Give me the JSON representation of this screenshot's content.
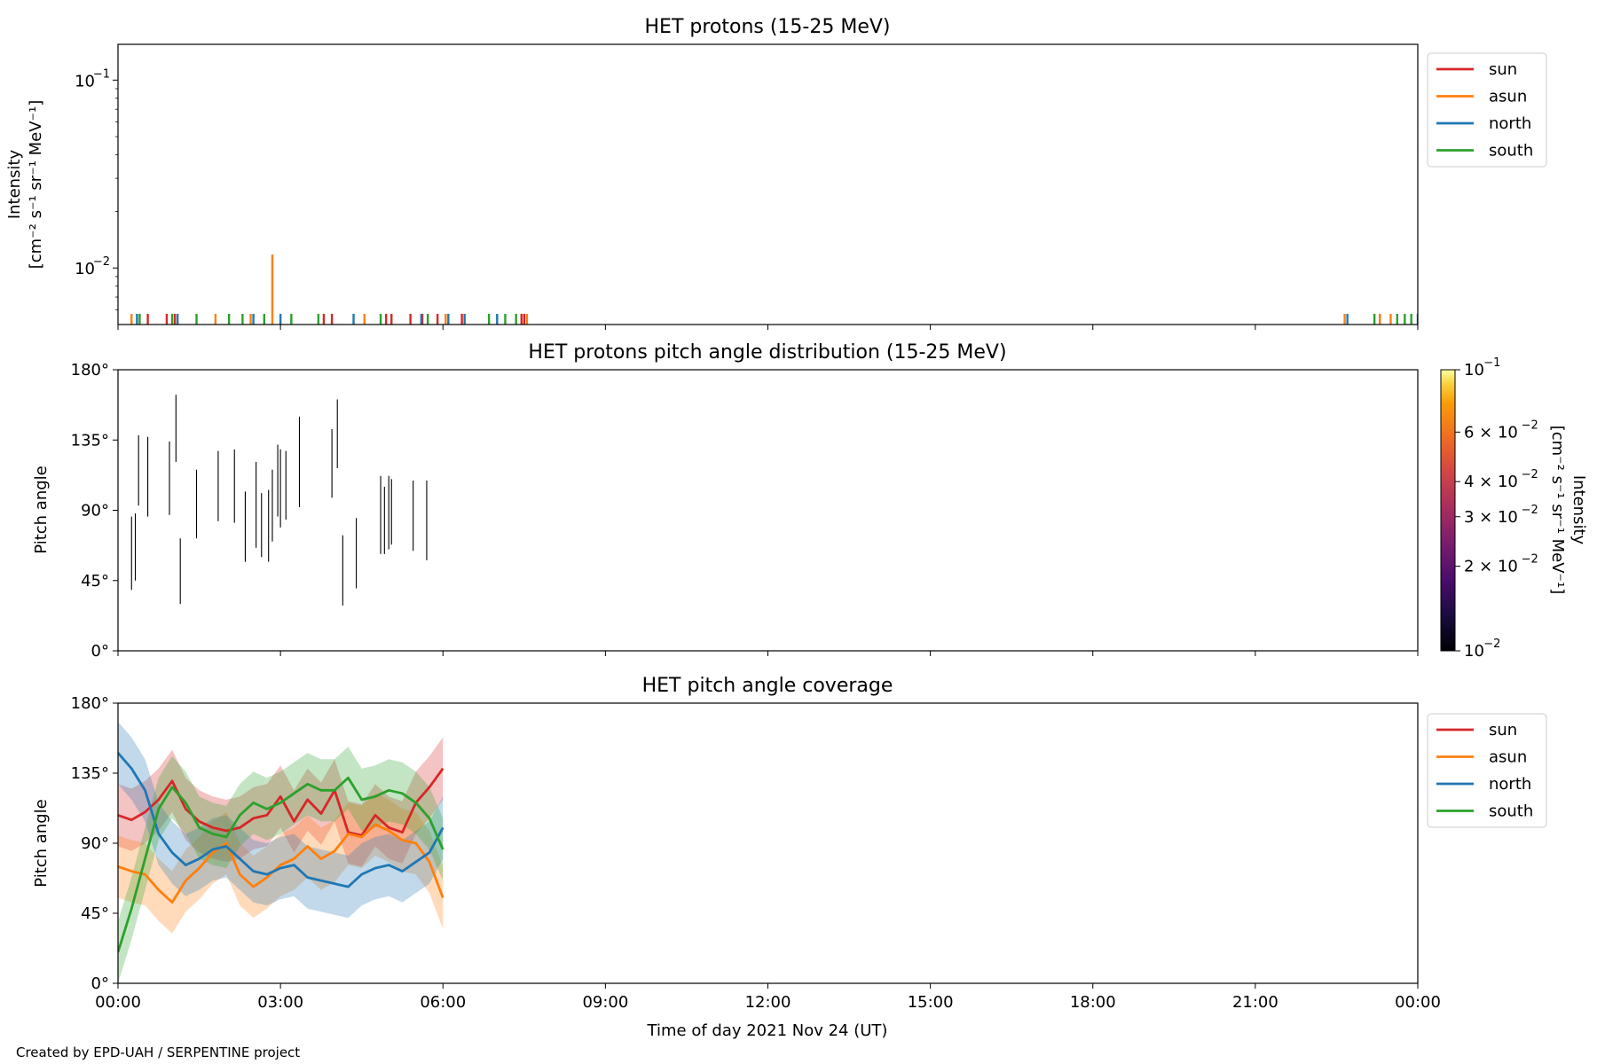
{
  "colors": {
    "sun": "#d62728",
    "asun": "#ff7f0e",
    "north": "#1f77b4",
    "south": "#2ca02c"
  },
  "credit": "Created by EPD-UAH / SERPENTINE project",
  "xaxis": {
    "label": "Time of day 2021 Nov 24 (UT)",
    "range_hours": [
      0,
      24
    ],
    "tick_hours": [
      0,
      3,
      6,
      9,
      12,
      15,
      18,
      21,
      24
    ],
    "tick_labels": [
      "00:00",
      "03:00",
      "06:00",
      "09:00",
      "12:00",
      "15:00",
      "18:00",
      "21:00",
      "00:00"
    ]
  },
  "chart_data": [
    {
      "type": "line",
      "title": "HET protons (15-25 MeV)",
      "ylabel_line1": "Intensity",
      "ylabel_line2": "[cm⁻² s⁻¹ sr⁻¹ MeV⁻¹]",
      "yscale": "log",
      "ylim": [
        0.005,
        0.155
      ],
      "yticks": [
        {
          "value": 0.01,
          "base": "10",
          "exp": "−2"
        },
        {
          "value": 0.1,
          "base": "10",
          "exp": "−1"
        }
      ],
      "legend": {
        "position": "upper-right-outside",
        "entries": [
          "sun",
          "asun",
          "north",
          "south"
        ]
      },
      "series": [
        {
          "name": "sun",
          "color": "#d62728",
          "baseline": 0.0052,
          "spikes": [
            [
              0.55,
              0.0057
            ],
            [
              0.9,
              0.0057
            ],
            [
              1.05,
              0.0057
            ],
            [
              3.8,
              0.0057
            ],
            [
              3.95,
              0.0057
            ],
            [
              4.95,
              0.0057
            ],
            [
              5.05,
              0.0057
            ],
            [
              5.4,
              0.0057
            ],
            [
              5.62,
              0.0057
            ],
            [
              5.9,
              0.0057
            ],
            [
              6.35,
              0.0057
            ],
            [
              7.45,
              0.0057
            ],
            [
              7.5,
              0.0057
            ],
            [
              23.3,
              0.0057
            ]
          ]
        },
        {
          "name": "asun",
          "color": "#ff7f0e",
          "baseline": 0.0052,
          "spikes": [
            [
              0.25,
              0.0057
            ],
            [
              1.8,
              0.0057
            ],
            [
              2.45,
              0.0057
            ],
            [
              2.85,
              0.0118
            ],
            [
              4.55,
              0.0057
            ],
            [
              6.05,
              0.0057
            ],
            [
              7.55,
              0.0057
            ],
            [
              22.65,
              0.0057
            ],
            [
              23.3,
              0.0057
            ],
            [
              23.5,
              0.0057
            ]
          ]
        },
        {
          "name": "north",
          "color": "#1f77b4",
          "baseline": 0.0052,
          "spikes": [
            [
              0.35,
              0.0057
            ],
            [
              1.1,
              0.0057
            ],
            [
              2.5,
              0.0057
            ],
            [
              3.0,
              0.0057
            ],
            [
              4.35,
              0.0057
            ],
            [
              5.6,
              0.0057
            ],
            [
              6.1,
              0.0057
            ],
            [
              6.4,
              0.0057
            ],
            [
              7.0,
              0.0057
            ],
            [
              22.7,
              0.0057
            ],
            [
              24.0,
              0.0057
            ]
          ]
        },
        {
          "name": "south",
          "color": "#2ca02c",
          "baseline": 0.0052,
          "spikes": [
            [
              0.4,
              0.0057
            ],
            [
              1.0,
              0.0057
            ],
            [
              1.45,
              0.0057
            ],
            [
              2.05,
              0.0057
            ],
            [
              2.3,
              0.0057
            ],
            [
              2.7,
              0.0057
            ],
            [
              3.2,
              0.0057
            ],
            [
              3.7,
              0.0057
            ],
            [
              4.85,
              0.0057
            ],
            [
              5.72,
              0.0057
            ],
            [
              6.85,
              0.0057
            ],
            [
              7.15,
              0.0057
            ],
            [
              7.35,
              0.0057
            ],
            [
              23.2,
              0.0057
            ],
            [
              23.62,
              0.0057
            ],
            [
              23.76,
              0.0057
            ],
            [
              23.88,
              0.0057
            ]
          ]
        }
      ]
    },
    {
      "type": "heatmap",
      "title": "HET protons pitch angle distribution (15-25 MeV)",
      "ylabel": "Pitch angle",
      "ylim": [
        0,
        180
      ],
      "yticks": [
        0,
        45,
        90,
        135,
        180
      ],
      "ytick_labels": [
        "0°",
        "45°",
        "90°",
        "135°",
        "180°"
      ],
      "colorbar": {
        "label_line1": "Intensity",
        "label_line2": "[cm⁻² s⁻¹ sr⁻¹ MeV⁻¹]",
        "scale": "log",
        "range": [
          0.01,
          0.1
        ],
        "colormap": "inferno",
        "ticks": [
          {
            "value": 0.1,
            "text": "10",
            "exp": "−1"
          },
          {
            "value": 0.06,
            "text": "6 × 10",
            "exp": "−2"
          },
          {
            "value": 0.04,
            "text": "4 × 10",
            "exp": "−2"
          },
          {
            "value": 0.03,
            "text": "3 × 10",
            "exp": "−2"
          },
          {
            "value": 0.02,
            "text": "2 × 10",
            "exp": "−2"
          },
          {
            "value": 0.01,
            "text": "10",
            "exp": "−2"
          }
        ]
      },
      "segments": [
        [
          0.25,
          39,
          86
        ],
        [
          0.32,
          45,
          88
        ],
        [
          0.38,
          93,
          138
        ],
        [
          0.55,
          86,
          137
        ],
        [
          0.95,
          87,
          134
        ],
        [
          1.07,
          121,
          164
        ],
        [
          1.15,
          30,
          72
        ],
        [
          1.45,
          72,
          116
        ],
        [
          1.85,
          83,
          128
        ],
        [
          2.15,
          82,
          129
        ],
        [
          2.35,
          57,
          102
        ],
        [
          2.55,
          66,
          121
        ],
        [
          2.65,
          60,
          101
        ],
        [
          2.78,
          57,
          103
        ],
        [
          2.85,
          70,
          116
        ],
        [
          2.95,
          86,
          132
        ],
        [
          3.0,
          79,
          129
        ],
        [
          3.1,
          84,
          128
        ],
        [
          3.35,
          92,
          150
        ],
        [
          3.95,
          98,
          142
        ],
        [
          4.05,
          117,
          161
        ],
        [
          4.15,
          29,
          74
        ],
        [
          4.4,
          40,
          85
        ],
        [
          4.85,
          62,
          112
        ],
        [
          4.92,
          62,
          105
        ],
        [
          5.0,
          65,
          112
        ],
        [
          5.05,
          68,
          110
        ],
        [
          5.45,
          64,
          109
        ],
        [
          5.7,
          58,
          109
        ]
      ]
    },
    {
      "type": "line",
      "title": "HET pitch angle coverage",
      "ylabel": "Pitch angle",
      "ylim": [
        0,
        180
      ],
      "yticks": [
        0,
        45,
        90,
        135,
        180
      ],
      "ytick_labels": [
        "0°",
        "45°",
        "90°",
        "135°",
        "180°"
      ],
      "x_range_hours": [
        0,
        6
      ],
      "legend": {
        "position": "upper-right-outside",
        "entries": [
          "sun",
          "asun",
          "north",
          "south"
        ]
      },
      "band_halfwidth_deg": 20,
      "series": [
        {
          "name": "sun",
          "color": "#d62728",
          "x": [
            0,
            0.25,
            0.5,
            0.75,
            1,
            1.25,
            1.5,
            1.75,
            2,
            2.25,
            2.5,
            2.75,
            3,
            3.25,
            3.5,
            3.75,
            4,
            4.25,
            4.5,
            4.75,
            5,
            5.25,
            5.5,
            5.75,
            6
          ],
          "y": [
            108,
            105,
            110,
            118,
            130,
            112,
            104,
            100,
            98,
            100,
            106,
            108,
            120,
            104,
            118,
            109,
            124,
            97,
            95,
            108,
            100,
            97,
            116,
            126,
            138
          ]
        },
        {
          "name": "asun",
          "color": "#ff7f0e",
          "x": [
            0,
            0.25,
            0.5,
            0.75,
            1,
            1.25,
            1.5,
            1.75,
            2,
            2.25,
            2.5,
            2.75,
            3,
            3.25,
            3.5,
            3.75,
            4,
            4.25,
            4.5,
            4.75,
            5,
            5.25,
            5.5,
            5.75,
            6
          ],
          "y": [
            75,
            72,
            70,
            60,
            52,
            66,
            74,
            84,
            90,
            70,
            62,
            68,
            76,
            80,
            88,
            80,
            85,
            96,
            94,
            102,
            98,
            92,
            90,
            78,
            55
          ]
        },
        {
          "name": "north",
          "color": "#1f77b4",
          "x": [
            0,
            0.25,
            0.5,
            0.75,
            1,
            1.25,
            1.5,
            1.75,
            2,
            2.25,
            2.5,
            2.75,
            3,
            3.25,
            3.5,
            3.75,
            4,
            4.25,
            4.5,
            4.75,
            5,
            5.25,
            5.5,
            5.75,
            6
          ],
          "y": [
            148,
            138,
            124,
            96,
            84,
            76,
            80,
            86,
            88,
            80,
            72,
            70,
            74,
            76,
            68,
            66,
            64,
            62,
            70,
            74,
            76,
            72,
            78,
            84,
            100
          ]
        },
        {
          "name": "south",
          "color": "#2ca02c",
          "x": [
            0,
            0.25,
            0.5,
            0.75,
            1,
            1.25,
            1.5,
            1.75,
            2,
            2.25,
            2.5,
            2.75,
            3,
            3.25,
            3.5,
            3.75,
            4,
            4.25,
            4.5,
            4.75,
            5,
            5.25,
            5.5,
            5.75,
            6
          ],
          "y": [
            20,
            48,
            80,
            112,
            126,
            116,
            100,
            96,
            94,
            108,
            116,
            112,
            116,
            122,
            128,
            124,
            124,
            132,
            118,
            120,
            124,
            122,
            116,
            106,
            86
          ]
        }
      ]
    }
  ]
}
